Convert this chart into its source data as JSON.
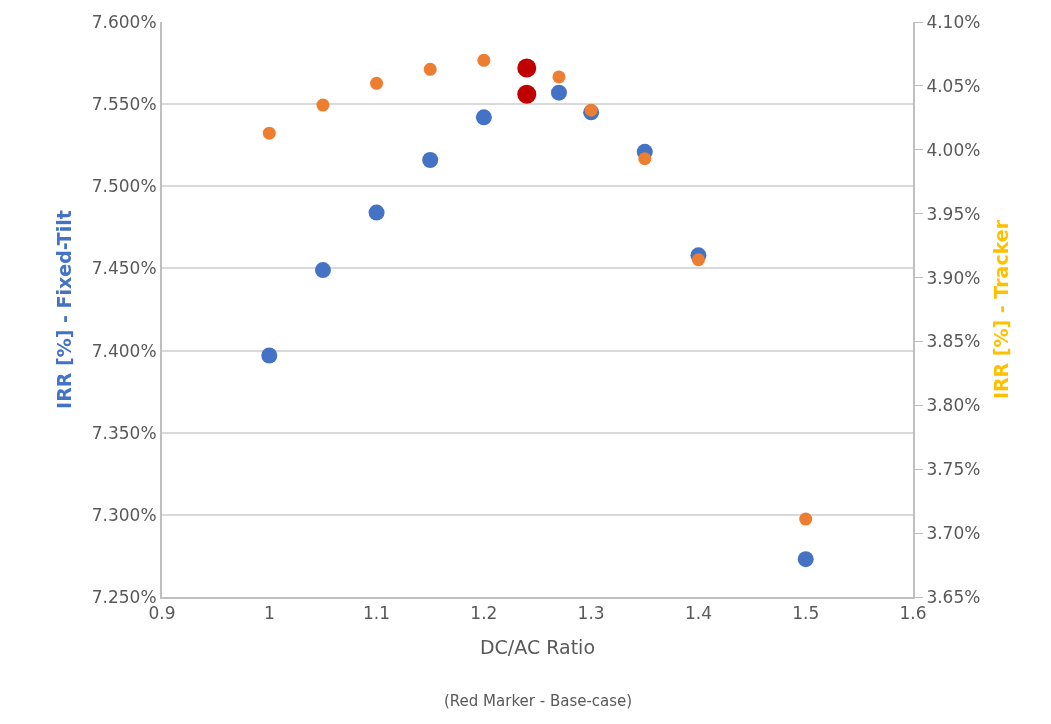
{
  "chart_data": {
    "type": "scatter",
    "xlabel": "DC/AC Ratio",
    "ylabel": "IRR [%] - Fixed-Tilt",
    "y2label": "IRR [%] - Tracker",
    "annotations": [
      "(Red Marker - Base-case)"
    ],
    "series": [
      {
        "color": "#4472c4",
        "x": [
          1.0,
          1.05,
          1.1,
          1.15,
          1.2,
          1.27,
          1.3,
          1.35,
          1.4,
          1.5
        ],
        "values": [
          7.397,
          7.449,
          7.484,
          7.516,
          7.542,
          7.557,
          7.545,
          7.521,
          7.458,
          7.273
        ]
      },
      {
        "color": "#ed7d31",
        "axis": "y2",
        "x": [
          1.0,
          1.05,
          1.1,
          1.15,
          1.2,
          1.27,
          1.3,
          1.35,
          1.4,
          1.5
        ],
        "values": [
          4.013,
          4.035,
          4.052,
          4.063,
          4.07,
          4.057,
          4.031,
          3.993,
          3.914,
          3.711
        ]
      },
      {
        "color": "#c00000",
        "x": [
          1.24
        ],
        "values": [
          7.556
        ]
      },
      {
        "color": "#c00000",
        "axis": "y2",
        "x": [
          1.24
        ],
        "values": [
          4.064
        ]
      }
    ],
    "xlim": [
      0.9,
      1.6
    ],
    "xticks": [
      0.9,
      1,
      1.1,
      1.2,
      1.3,
      1.4,
      1.5,
      1.6
    ],
    "ylim": [
      7.25,
      7.6
    ],
    "yticks": [
      {
        "value": 7.25,
        "label": "7.250%"
      },
      {
        "value": 7.3,
        "label": "7.300%"
      },
      {
        "value": 7.35,
        "label": "7.350%"
      },
      {
        "value": 7.4,
        "label": "7.400%"
      },
      {
        "value": 7.45,
        "label": "7.450%"
      },
      {
        "value": 7.5,
        "label": "7.500%"
      },
      {
        "value": 7.55,
        "label": "7.550%"
      },
      {
        "value": 7.6,
        "label": "7.600%"
      }
    ],
    "y2lim": [
      3.65,
      4.1
    ],
    "y2ticks": [
      {
        "value": 3.65,
        "label": "3.65%"
      },
      {
        "value": 3.7,
        "label": "3.70%"
      },
      {
        "value": 3.75,
        "label": "3.75%"
      },
      {
        "value": 3.8,
        "label": "3.80%"
      },
      {
        "value": 3.85,
        "label": "3.85%"
      },
      {
        "value": 3.9,
        "label": "3.90%"
      },
      {
        "value": 3.95,
        "label": "3.95%"
      },
      {
        "value": 4.0,
        "label": "4.00%"
      },
      {
        "value": 4.05,
        "label": "4.05%"
      },
      {
        "value": 4.1,
        "label": "4.10%"
      }
    ],
    "grid": "y",
    "marker": "circle"
  }
}
